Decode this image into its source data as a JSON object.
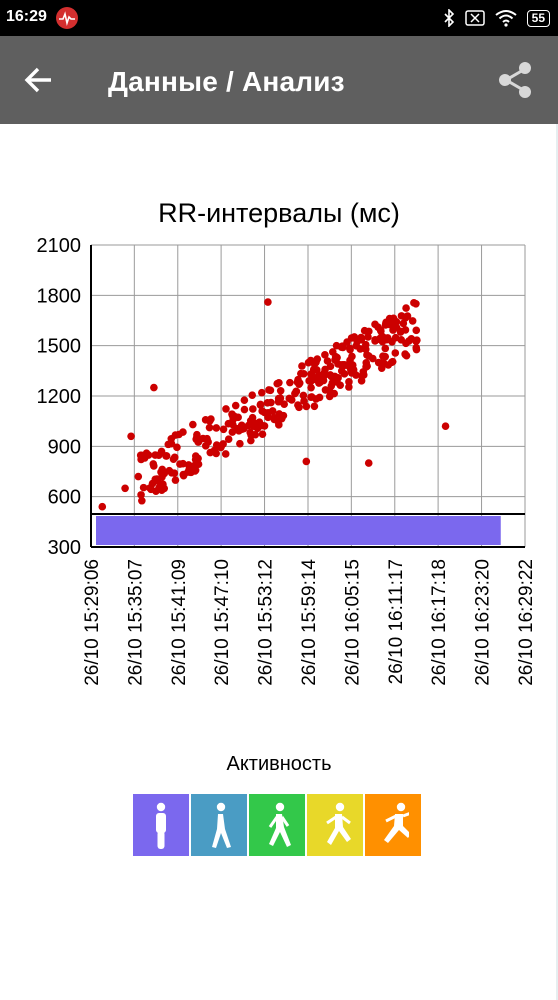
{
  "status_bar": {
    "time": "16:29",
    "battery": "55",
    "icons": [
      "heart-monitor-icon",
      "bluetooth-icon",
      "sim-x-icon",
      "wifi-icon",
      "battery-icon"
    ]
  },
  "app_bar": {
    "title": "Данные / Анализ",
    "back_icon": "arrow-back-icon",
    "share_icon": "share-icon",
    "color": "#5f5f5f"
  },
  "chart_data": {
    "type": "scatter",
    "title": "RR-интервалы (мс)",
    "xlabel": "",
    "ylabel": "",
    "ylim": [
      300,
      2100
    ],
    "yticks": [
      "2100",
      "1800",
      "1500",
      "1200",
      "900",
      "600",
      "300"
    ],
    "xticks": [
      "26/10 15:29:06",
      "26/10 15:35:07",
      "26/10 15:41:09",
      "26/10 15:47:10",
      "26/10 15:53:12",
      "26/10 15:59:14",
      "26/10 16:05:15",
      "26/10 16:11:17",
      "26/10 16:17:18",
      "26/10 16:23:20",
      "26/10 16:29:22"
    ],
    "grid": true,
    "point_color": "#cc0000",
    "activity_band": {
      "level": "1",
      "color": "#7b68ee",
      "from": "26/10 15:29:06",
      "to": "26/10 16:26:00"
    },
    "series": [
      {
        "points": [
          [
            "26/10 15:30:40",
            540
          ],
          [
            "26/10 15:33:50",
            650
          ],
          [
            "26/10 15:34:40",
            960
          ],
          [
            "26/10 15:35:40",
            720
          ],
          [
            "26/10 15:37:50",
            1250
          ],
          [
            "26/10 15:53:40",
            1760
          ],
          [
            "26/10 15:59:00",
            810
          ],
          [
            "26/10 16:07:40",
            800
          ],
          [
            "26/10 16:18:20",
            1020
          ]
        ],
        "clusters": [
          {
            "from": "26/10 15:36:00",
            "to": "26/10 16:14:30",
            "y_start": 720,
            "y_end": 1620,
            "spread": 150,
            "count": 320,
            "seed": 7
          }
        ]
      }
    ]
  },
  "activity": {
    "title": "Активность",
    "levels": [
      {
        "name": "standing",
        "color": "#7b68ee",
        "icon": "standing-person-icon"
      },
      {
        "name": "walking",
        "color": "#4a9cc4",
        "icon": "walking-person-icon"
      },
      {
        "name": "brisk-walking",
        "color": "#33c84a",
        "icon": "brisk-walking-icon"
      },
      {
        "name": "jogging",
        "color": "#e8d829",
        "icon": "jogging-icon"
      },
      {
        "name": "running",
        "color": "#ff9000",
        "icon": "running-icon"
      }
    ]
  }
}
